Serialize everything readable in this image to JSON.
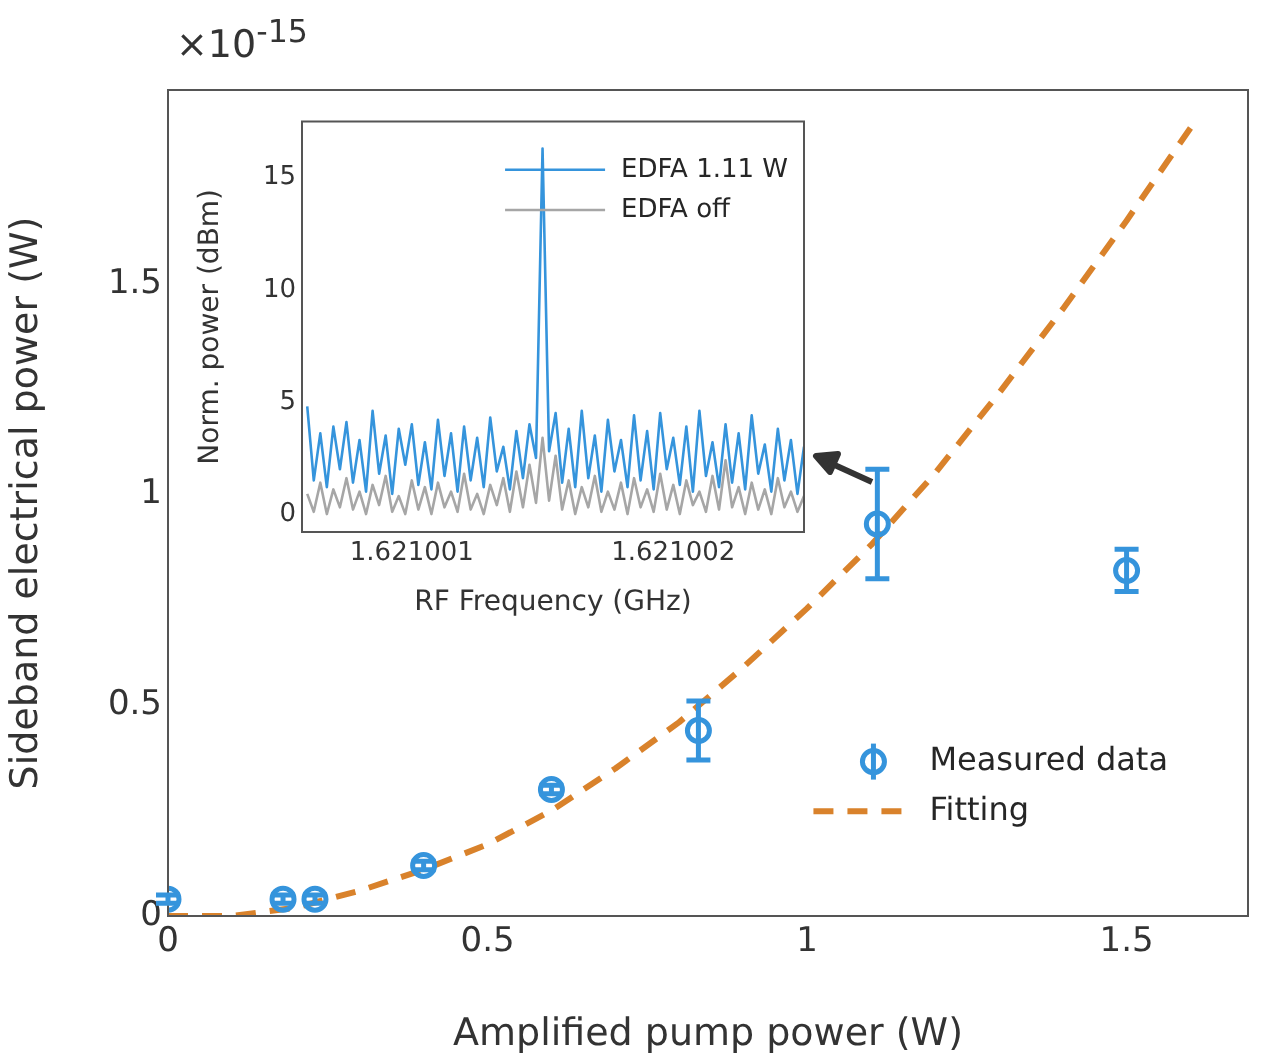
{
  "chart_data": [
    {
      "type": "scatter",
      "xlabel": "Amplified pump power (W)",
      "ylabel": "Sideband electrical power (W)",
      "annotations": [
        "×10$^{-15}$"
      ],
      "xlim": [
        0,
        1.69
      ],
      "ylim": [
        0,
        1.96
      ],
      "xticks": [
        0,
        0.5,
        1,
        1.5
      ],
      "yticks": [
        0,
        0.5,
        1,
        1.5
      ],
      "legend": "bottom right",
      "series": [
        {
          "name": "Measured data",
          "type": "scatter",
          "color": "#3594dc",
          "marker": "circle",
          "x": [
            0,
            0.18,
            0.23,
            0.4,
            0.6,
            0.83,
            1.11,
            1.5
          ],
          "values": [
            0.04,
            0.04,
            0.04,
            0.12,
            0.3,
            0.44,
            0.93,
            0.82
          ],
          "errors": [
            0.01,
            0.01,
            0.01,
            0.01,
            0.01,
            0.07,
            [
              0.8,
              1.06
            ],
            [
              0.77,
              0.87
            ]
          ]
        },
        {
          "name": "Fitting",
          "type": "line",
          "color": "#d9822b",
          "line_style": "dashed",
          "x": [
            0,
            0.1,
            0.2,
            0.3,
            0.4,
            0.5,
            0.6,
            0.7,
            0.8,
            0.9,
            1.0,
            1.1,
            1.2,
            1.3,
            1.4,
            1.5,
            1.6
          ],
          "values": [
            0,
            0,
            0.02,
            0.06,
            0.11,
            0.17,
            0.25,
            0.35,
            0.46,
            0.59,
            0.73,
            0.88,
            1.05,
            1.24,
            1.44,
            1.65,
            1.87
          ]
        }
      ]
    },
    {
      "type": "line",
      "xlabel": "RF Frequency (GHz)",
      "ylabel": "Norm. power (dBm)",
      "marker": "none",
      "legend": "top right",
      "xlim": [
        1.62100058,
        1.6210025
      ],
      "ylim": [
        -0.8,
        17.5
      ],
      "xticks": [
        1.621001,
        1.621002
      ],
      "yticks": [
        0,
        5,
        10,
        15
      ],
      "x": [
        1.6210006,
        1.621000625,
        1.62100065,
        1.621000675,
        1.6210007,
        1.621000725,
        1.62100075,
        1.621000775,
        1.6210008,
        1.621000825,
        1.62100085,
        1.621000875,
        1.6210009,
        1.621000925,
        1.62100095,
        1.621000975,
        1.621001,
        1.621001025,
        1.62100105,
        1.621001075,
        1.6210011,
        1.621001125,
        1.62100115,
        1.621001175,
        1.6210012,
        1.621001225,
        1.62100125,
        1.621001275,
        1.6210013,
        1.621001325,
        1.62100135,
        1.621001375,
        1.6210014,
        1.621001425,
        1.62100145,
        1.621001475,
        1.6210015,
        1.621001525,
        1.62100155,
        1.621001575,
        1.6210016,
        1.621001625,
        1.62100165,
        1.621001675,
        1.6210017,
        1.621001725,
        1.62100175,
        1.621001775,
        1.6210018,
        1.621001825,
        1.62100185,
        1.621001875,
        1.6210019,
        1.621001925,
        1.62100195,
        1.621001975,
        1.621002,
        1.621002025,
        1.62100205,
        1.621002075,
        1.6210021,
        1.621002125,
        1.62100215,
        1.621002175,
        1.6210022,
        1.621002225,
        1.62100225,
        1.621002275,
        1.6210023,
        1.621002325,
        1.62100235,
        1.621002375,
        1.6210024,
        1.621002425,
        1.62100245,
        1.621002475,
        1.6210025
      ],
      "series": [
        {
          "name": "EDFA 1.11 W",
          "color": "#3594dc",
          "values": [
            4.8,
            1.5,
            3.6,
            1.2,
            3.9,
            2.0,
            4.1,
            1.4,
            3.3,
            1.0,
            4.6,
            1.8,
            3.5,
            0.9,
            3.8,
            2.2,
            4.0,
            1.3,
            3.2,
            1.1,
            4.2,
            1.7,
            3.6,
            1.0,
            3.9,
            1.5,
            3.4,
            1.2,
            4.3,
            1.9,
            3.0,
            1.1,
            3.7,
            1.6,
            4.0,
            2.5,
            16.3,
            2.8,
            4.5,
            1.4,
            3.8,
            1.2,
            4.6,
            1.6,
            3.5,
            1.0,
            4.2,
            1.9,
            3.3,
            1.2,
            4.4,
            1.5,
            3.7,
            1.1,
            4.5,
            2.0,
            3.4,
            1.3,
            3.9,
            1.0,
            4.6,
            1.7,
            3.2,
            1.2,
            4.0,
            1.4,
            3.6,
            1.1,
            4.4,
            1.8,
            3.1,
            1.0,
            3.8,
            1.5,
            3.3,
            0.9,
            3.0
          ]
        },
        {
          "name": "EDFA off",
          "color": "#a6a6a6",
          "values": [
            0.9,
            0.1,
            1.4,
            0.0,
            1.1,
            0.3,
            1.6,
            0.2,
            1.0,
            0.0,
            1.3,
            0.4,
            1.7,
            0.1,
            0.8,
            0.0,
            1.5,
            0.2,
            1.2,
            0.0,
            1.4,
            0.3,
            1.0,
            0.1,
            1.8,
            0.2,
            0.9,
            0.0,
            1.3,
            0.4,
            1.6,
            0.1,
            1.9,
            0.3,
            2.2,
            0.5,
            3.4,
            0.6,
            2.6,
            0.2,
            1.5,
            0.0,
            1.2,
            0.3,
            1.7,
            0.1,
            1.0,
            0.2,
            1.4,
            0.0,
            1.6,
            0.3,
            1.1,
            0.1,
            1.8,
            0.2,
            1.3,
            0.0,
            1.5,
            0.4,
            1.0,
            0.1,
            1.7,
            0.2,
            2.4,
            0.3,
            1.2,
            0.0,
            1.4,
            0.2,
            1.1,
            0.0,
            1.6,
            0.3,
            1.0,
            0.1,
            0.8
          ]
        }
      ]
    }
  ]
}
